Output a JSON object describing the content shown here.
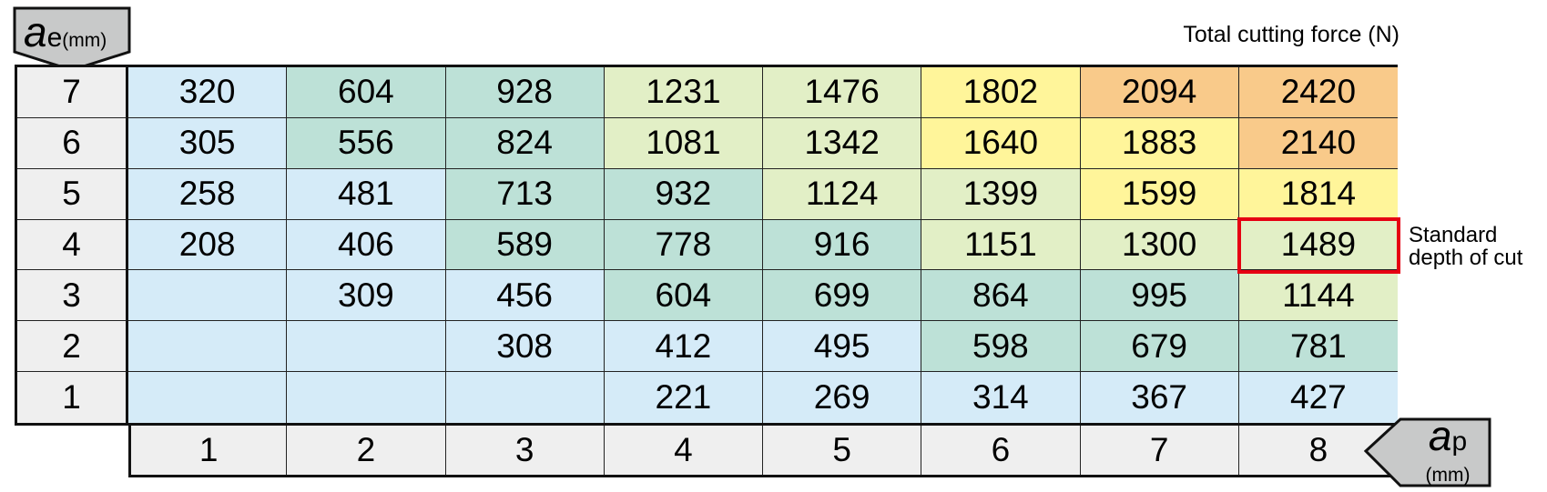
{
  "chart_data": {
    "type": "heatmap",
    "title": "Total cutting force (N)",
    "y_axis": {
      "symbol": "a",
      "subscript": "e",
      "unit": "(mm)"
    },
    "x_axis": {
      "symbol": "a",
      "subscript": "p",
      "unit": "(mm)"
    },
    "x_categories": [
      "1",
      "2",
      "3",
      "4",
      "5",
      "6",
      "7",
      "8"
    ],
    "y_categories": [
      "7",
      "6",
      "5",
      "4",
      "3",
      "2",
      "1"
    ],
    "values": [
      [
        320,
        604,
        928,
        1231,
        1476,
        1802,
        2094,
        2420
      ],
      [
        305,
        556,
        824,
        1081,
        1342,
        1640,
        1883,
        2140
      ],
      [
        258,
        481,
        713,
        932,
        1124,
        1399,
        1599,
        1814
      ],
      [
        208,
        406,
        589,
        778,
        916,
        1151,
        1300,
        1489
      ],
      [
        null,
        309,
        456,
        604,
        699,
        864,
        995,
        1144
      ],
      [
        null,
        null,
        308,
        412,
        495,
        598,
        679,
        781
      ],
      [
        null,
        null,
        null,
        221,
        269,
        314,
        367,
        427
      ]
    ],
    "color_scale": [
      {
        "max": 500,
        "color": "#d5ebf8"
      },
      {
        "max": 1000,
        "color": "#bde1d7"
      },
      {
        "max": 1500,
        "color": "#e2efc6"
      },
      {
        "max": 2000,
        "color": "#fff59a"
      },
      {
        "max": 99999,
        "color": "#f9ca8a"
      }
    ],
    "empty_color": "#d5ebf8",
    "highlight": {
      "row": "4",
      "col": "8",
      "label_line1": "Standard",
      "label_line2": "depth of cut",
      "color": "#e60012"
    }
  }
}
